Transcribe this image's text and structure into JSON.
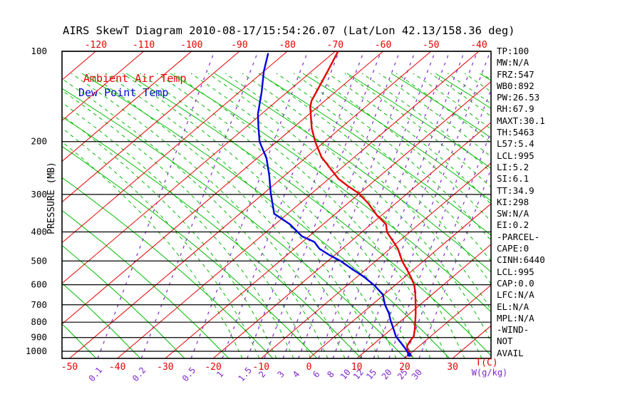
{
  "title": "AIRS SkewT Diagram 2010-08-17/15:54:26.07 (Lat/Lon 42.13/158.36 deg)",
  "legend": {
    "ambient": "Ambient Air Temp",
    "dew": "Dew Point Temp"
  },
  "stats_panel": [
    "TP:100",
    "MW:N/A",
    "FRZ:547",
    "WB0:892",
    "PW:26.53",
    "RH:67.9",
    "MAXT:30.1",
    "TH:5463",
    "L57:5.4",
    "LCL:995",
    "LI:5.2",
    "SI:6.1",
    "TT:34.9",
    "KI:298",
    "SW:N/A",
    "EI:0.2",
    "-PARCEL-",
    "CAPE:0",
    "CINH:6440",
    "LCL:995",
    "CAP:0.0",
    "LFC:N/A",
    "EL:N/A",
    "MPL:N/A",
    "-WIND-",
    "NOT",
    "AVAIL"
  ],
  "colors": {
    "isotherm_red": "#e60000",
    "adiabat_green": "#00bb00",
    "mixing_purple": "#7d26cd",
    "ambient_red": "#e60000",
    "dewpoint_blue": "#0000dd",
    "grid_black": "#000000"
  },
  "chart_data": {
    "type": "line",
    "variant": "skew-t log-p thermodynamic diagram",
    "title": "AIRS SkewT Diagram 2010-08-17/15:54:26.07 (Lat/Lon 42.13/158.36 deg)",
    "pressure_axis": {
      "label": "PRESSURE (MB)",
      "ticks": [
        100,
        200,
        300,
        400,
        500,
        600,
        700,
        800,
        900,
        1000
      ],
      "range_mb": [
        100,
        1050
      ],
      "scale": "log"
    },
    "temp_axis": {
      "label": "T(C)",
      "bottom_ticks": [
        -50,
        -40,
        -30,
        -20,
        -10,
        0,
        10,
        20,
        30
      ],
      "top_ticks": [
        -120,
        -110,
        -100,
        -90,
        -80,
        -70,
        -60,
        -50,
        -40
      ],
      "skew_deg": 45
    },
    "mixing_ratio_axis": {
      "label": "W(g/kg)",
      "ticks_and_base_temp": [
        [
          0.1,
          -44.1
        ],
        [
          0.2,
          -35.0
        ],
        [
          0.5,
          -24.6
        ],
        [
          1,
          -18.1
        ],
        [
          1.5,
          -12.9
        ],
        [
          2,
          -9.3
        ],
        [
          3,
          -5.4
        ],
        [
          4,
          -2.2
        ],
        [
          6,
          2.0
        ],
        [
          8,
          5.0
        ],
        [
          10,
          8.1
        ],
        [
          12,
          10.8
        ],
        [
          15,
          13.5
        ],
        [
          20,
          16.7
        ],
        [
          25,
          20.0
        ],
        [
          30,
          23.0
        ]
      ]
    },
    "legend_position": "top-left inside plot",
    "grid": "isotherms (red), dry adiabats (green solid), moist adiabats (green dashed), mixing ratio (purple dashed), isobars (black)",
    "series": [
      {
        "name": "Ambient Air Temp",
        "color": "#e60000",
        "points_p_mb_t_c": [
          [
            100,
            -69.4
          ],
          [
            117,
            -66.6
          ],
          [
            146,
            -62.8
          ],
          [
            153,
            -61.6
          ],
          [
            181,
            -55.9
          ],
          [
            201,
            -51.8
          ],
          [
            225,
            -46.9
          ],
          [
            245,
            -42.4
          ],
          [
            266,
            -38.0
          ],
          [
            281,
            -34.3
          ],
          [
            297,
            -30.3
          ],
          [
            322,
            -25.6
          ],
          [
            352,
            -21.0
          ],
          [
            377,
            -16.9
          ],
          [
            401,
            -14.7
          ],
          [
            430,
            -11.2
          ],
          [
            455,
            -8.4
          ],
          [
            501,
            -4.4
          ],
          [
            536,
            -1.2
          ],
          [
            566,
            1.3
          ],
          [
            599,
            3.8
          ],
          [
            633,
            5.8
          ],
          [
            700,
            9.1
          ],
          [
            747,
            11.2
          ],
          [
            787,
            12.8
          ],
          [
            840,
            14.8
          ],
          [
            893,
            16.5
          ],
          [
            928,
            16.9
          ],
          [
            963,
            17.5
          ],
          [
            1000,
            19.0
          ],
          [
            1036,
            20.8
          ]
        ]
      },
      {
        "name": "Dew Point Temp",
        "color": "#0000dd",
        "points_p_mb_t_c": [
          [
            102,
            -83.4
          ],
          [
            117,
            -79.9
          ],
          [
            136,
            -75.5
          ],
          [
            162,
            -70.7
          ],
          [
            180,
            -67.2
          ],
          [
            200,
            -63.6
          ],
          [
            227,
            -58.1
          ],
          [
            259,
            -53.3
          ],
          [
            297,
            -48.6
          ],
          [
            348,
            -42.8
          ],
          [
            377,
            -37.0
          ],
          [
            414,
            -31.4
          ],
          [
            432,
            -27.5
          ],
          [
            455,
            -24.8
          ],
          [
            478,
            -21.1
          ],
          [
            501,
            -17.2
          ],
          [
            536,
            -12.4
          ],
          [
            566,
            -8.4
          ],
          [
            605,
            -4.1
          ],
          [
            648,
            -0.2
          ],
          [
            700,
            2.7
          ],
          [
            747,
            5.6
          ],
          [
            787,
            7.6
          ],
          [
            840,
            10.3
          ],
          [
            893,
            12.8
          ],
          [
            941,
            15.6
          ],
          [
            983,
            17.9
          ],
          [
            1026,
            20.0
          ]
        ]
      }
    ]
  }
}
